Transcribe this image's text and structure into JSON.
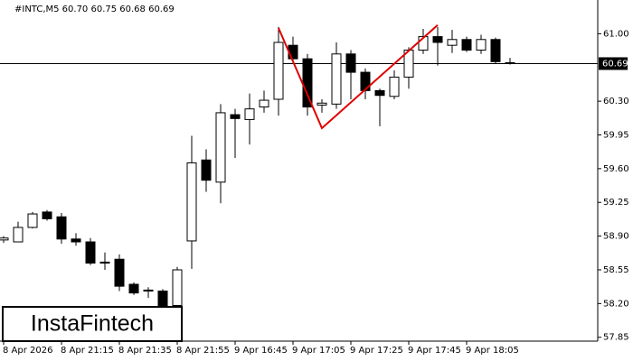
{
  "chart_data": {
    "type": "candlestick",
    "title": "#INTC,M5  60.70 60.75 60.68 60.69",
    "categories": [
      "8 Apr 2026",
      null,
      null,
      null,
      "8 Apr 21:15",
      null,
      null,
      null,
      "8 Apr 21:35",
      null,
      null,
      null,
      "8 Apr 21:55",
      null,
      null,
      null,
      "9 Apr 16:45",
      null,
      null,
      null,
      "9 Apr 17:05",
      null,
      null,
      null,
      "9 Apr 17:25",
      null,
      null,
      null,
      "9 Apr 17:45",
      null,
      null,
      null,
      "9 Apr 18:05",
      null,
      null,
      null
    ],
    "series": [
      {
        "open": [
          58.86,
          58.84,
          58.99,
          59.15,
          59.1,
          58.87,
          58.84,
          58.63,
          58.66,
          58.4,
          58.34,
          58.33,
          58.18,
          58.85,
          59.69,
          59.46,
          60.16,
          60.11,
          60.24,
          60.32,
          60.88,
          60.74,
          60.26,
          60.27,
          60.79,
          60.6,
          60.41,
          60.35,
          60.55,
          60.83,
          60.97,
          60.88,
          60.94,
          60.83,
          60.94,
          60.7
        ],
        "high": [
          58.9,
          59.05,
          59.15,
          59.17,
          59.14,
          58.93,
          58.88,
          58.73,
          58.71,
          58.42,
          58.37,
          58.35,
          58.58,
          59.94,
          59.8,
          60.27,
          60.22,
          60.38,
          60.41,
          61.07,
          60.97,
          60.79,
          60.32,
          60.91,
          60.83,
          60.64,
          60.43,
          60.62,
          60.86,
          61.05,
          61.07,
          61.04,
          60.97,
          60.99,
          60.96,
          60.75
        ],
        "low": [
          58.83,
          58.84,
          58.98,
          59.06,
          58.82,
          58.8,
          58.6,
          58.55,
          58.33,
          58.29,
          58.26,
          58.15,
          58.15,
          58.56,
          59.36,
          59.24,
          59.71,
          59.85,
          60.18,
          60.15,
          60.69,
          60.15,
          60.18,
          60.22,
          60.32,
          60.32,
          60.04,
          60.32,
          60.43,
          60.79,
          60.67,
          60.8,
          60.81,
          60.79,
          60.69,
          60.68
        ],
        "close": [
          58.88,
          58.99,
          59.13,
          59.08,
          58.87,
          58.84,
          58.62,
          58.62,
          58.38,
          58.31,
          58.33,
          58.17,
          58.55,
          59.66,
          59.48,
          60.18,
          60.12,
          60.22,
          60.31,
          60.91,
          60.74,
          60.24,
          60.28,
          60.79,
          60.6,
          60.41,
          60.36,
          60.55,
          60.83,
          60.97,
          60.91,
          60.94,
          60.83,
          60.94,
          60.71,
          60.69
        ]
      }
    ],
    "ylim": [
      57.81,
      61.35
    ],
    "yticks": [
      57.85,
      {
        "value": 58.2,
        "label": "58.20"
      },
      58.55,
      {
        "value": 58.9,
        "label": "58.90"
      },
      59.25,
      {
        "value": 59.6,
        "label": "59.60"
      },
      59.95,
      {
        "value": 60.3,
        "label": "60.30"
      },
      {
        "value": 61.0,
        "label": "61.00"
      }
    ],
    "current_price": 60.69,
    "pattern": {
      "color": "#e00000",
      "bars": [
        19,
        22,
        30
      ],
      "values": [
        61.06,
        60.02,
        61.09
      ]
    },
    "watermark": "InstaFintech"
  }
}
